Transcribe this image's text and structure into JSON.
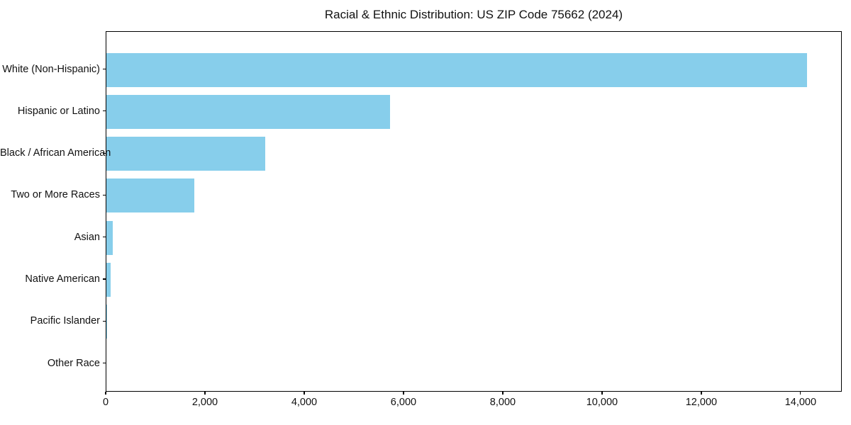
{
  "chart_data": {
    "type": "bar",
    "orientation": "horizontal",
    "title": "Racial & Ethnic Distribution: US ZIP Code 75662 (2024)",
    "categories": [
      "White (Non-Hispanic)",
      "Hispanic or Latino",
      "Black / African American",
      "Two or More Races",
      "Asian",
      "Native American",
      "Pacific Islander",
      "Other Race"
    ],
    "values": [
      14110,
      5720,
      3200,
      1770,
      130,
      90,
      10,
      0
    ],
    "xlabel": "",
    "ylabel": "",
    "xlim": [
      0,
      14830
    ],
    "x_ticks": [
      {
        "value": 0,
        "label": "0"
      },
      {
        "value": 2000,
        "label": "2,000"
      },
      {
        "value": 4000,
        "label": "4,000"
      },
      {
        "value": 6000,
        "label": "6,000"
      },
      {
        "value": 8000,
        "label": "8,000"
      },
      {
        "value": 10000,
        "label": "10,000"
      },
      {
        "value": 12000,
        "label": "12,000"
      },
      {
        "value": 14000,
        "label": "14,000"
      }
    ],
    "grid": false,
    "legend": null,
    "bar_color": "#87CEEB",
    "axis_color": "#000000",
    "background_color": "#ffffff"
  }
}
